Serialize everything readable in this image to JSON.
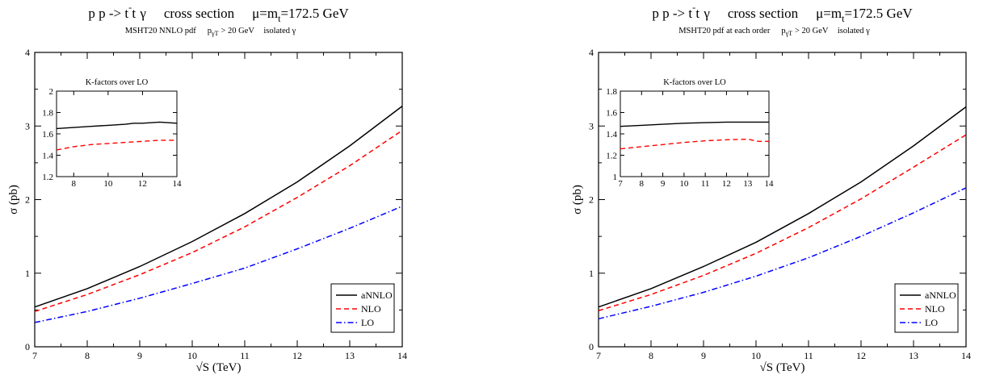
{
  "chart_data": [
    {
      "type": "line",
      "title": "p p -> t t̄ γ    cross section    μ=m_t=172.5 GeV",
      "title_parts": {
        "process": "p p -> t t",
        "bar": "-",
        "gamma": "γ",
        "cross": "cross section",
        "mu": "μ=m",
        "sub_t": "t",
        "value": "=172.5 GeV"
      },
      "subtitle": "MSHT20 NNLO pdf    p_γT > 20 GeV    isolated γ",
      "subtitle_parts": {
        "pdf": "MSHT20 NNLO pdf",
        "pt": "p",
        "pt_sub": "γT",
        "cut": "> 20 GeV",
        "iso": "isolated γ"
      },
      "xlabel": "√S (TeV)",
      "ylabel": "σ  (pb)",
      "xlim": [
        7,
        14
      ],
      "ylim": [
        0,
        4
      ],
      "xticks": [
        7,
        8,
        9,
        10,
        11,
        12,
        13,
        14
      ],
      "yticks": [
        0,
        1,
        2,
        3,
        4
      ],
      "legend_position": "bottom-right",
      "series": [
        {
          "name": "aNNLO",
          "color": "#000000",
          "dash": "solid",
          "x": [
            7,
            8,
            9,
            10,
            11,
            12,
            13,
            14
          ],
          "y": [
            0.54,
            0.79,
            1.09,
            1.43,
            1.81,
            2.24,
            2.73,
            3.27
          ]
        },
        {
          "name": "NLO",
          "color": "#ff0000",
          "dash": "dashed",
          "x": [
            7,
            8,
            9,
            10,
            11,
            12,
            13,
            14
          ],
          "y": [
            0.48,
            0.71,
            0.98,
            1.28,
            1.63,
            2.03,
            2.46,
            2.94
          ]
        },
        {
          "name": "LO",
          "color": "#0000ff",
          "dash": "dashdot",
          "x": [
            7,
            8,
            9,
            10,
            11,
            12,
            13,
            14
          ],
          "y": [
            0.33,
            0.48,
            0.66,
            0.86,
            1.07,
            1.33,
            1.61,
            1.91
          ]
        }
      ],
      "inset": {
        "title": "K-factors over LO",
        "xlim": [
          7,
          14
        ],
        "ylim": [
          1.2,
          2.0
        ],
        "xticks": [
          8,
          10,
          12,
          14
        ],
        "yticks": [
          1.2,
          1.4,
          1.6,
          1.8,
          2.0
        ],
        "series": [
          {
            "name": "aNNLO",
            "color": "#000000",
            "dash": "solid",
            "x": [
              7,
              8,
              9,
              10,
              11,
              11.5,
              12,
              13,
              14
            ],
            "y": [
              1.65,
              1.66,
              1.67,
              1.68,
              1.69,
              1.7,
              1.7,
              1.71,
              1.7
            ]
          },
          {
            "name": "NLO",
            "color": "#ff0000",
            "dash": "dashed",
            "x": [
              7,
              8,
              9,
              10,
              11,
              12,
              13,
              14
            ],
            "y": [
              1.45,
              1.48,
              1.5,
              1.51,
              1.52,
              1.53,
              1.54,
              1.54
            ]
          }
        ]
      }
    },
    {
      "type": "line",
      "title": "p p -> t t̄ γ    cross section    μ=m_t=172.5 GeV",
      "title_parts": {
        "process": "p p -> t t",
        "bar": "-",
        "gamma": "γ",
        "cross": "cross section",
        "mu": "μ=m",
        "sub_t": "t",
        "value": "=172.5 GeV"
      },
      "subtitle": "MSHT20 pdf at each order    p_γT > 20 GeV    isolated γ",
      "subtitle_parts": {
        "pdf": "MSHT20 pdf at each order",
        "pt": "p",
        "pt_sub": "γT",
        "cut": "> 20 GeV",
        "iso": "isolated γ"
      },
      "xlabel": "√S (TeV)",
      "ylabel": "σ  (pb)",
      "xlim": [
        7,
        14
      ],
      "ylim": [
        0,
        4
      ],
      "xticks": [
        7,
        8,
        9,
        10,
        11,
        12,
        13,
        14
      ],
      "yticks": [
        0,
        1,
        2,
        3,
        4
      ],
      "legend_position": "bottom-right",
      "series": [
        {
          "name": "aNNLO",
          "color": "#000000",
          "dash": "solid",
          "x": [
            7,
            8,
            9,
            10,
            11,
            12,
            13,
            14
          ],
          "y": [
            0.54,
            0.79,
            1.09,
            1.42,
            1.81,
            2.24,
            2.73,
            3.26
          ]
        },
        {
          "name": "NLO",
          "color": "#ff0000",
          "dash": "dashed",
          "x": [
            7,
            8,
            9,
            10,
            11,
            12,
            13,
            14
          ],
          "y": [
            0.49,
            0.71,
            0.97,
            1.27,
            1.62,
            2.01,
            2.44,
            2.88
          ]
        },
        {
          "name": "LO",
          "color": "#0000ff",
          "dash": "dashdot",
          "x": [
            7,
            8,
            9,
            10,
            11,
            12,
            13,
            14
          ],
          "y": [
            0.38,
            0.55,
            0.74,
            0.96,
            1.21,
            1.5,
            1.82,
            2.16
          ]
        }
      ],
      "inset": {
        "title": "K-factors over LO",
        "xlim": [
          7,
          14
        ],
        "ylim": [
          1.0,
          1.8
        ],
        "xticks": [
          7,
          8,
          9,
          10,
          11,
          12,
          13,
          14
        ],
        "yticks": [
          1.0,
          1.2,
          1.4,
          1.6,
          1.8
        ],
        "series": [
          {
            "name": "aNNLO",
            "color": "#000000",
            "dash": "solid",
            "x": [
              7,
              8,
              9,
              10,
              11,
              12,
              13,
              14
            ],
            "y": [
              1.47,
              1.48,
              1.49,
              1.5,
              1.505,
              1.51,
              1.51,
              1.51
            ]
          },
          {
            "name": "NLO",
            "color": "#ff0000",
            "dash": "dashed",
            "x": [
              7,
              8,
              9,
              10,
              11,
              12,
              13,
              13.5,
              14
            ],
            "y": [
              1.26,
              1.28,
              1.3,
              1.32,
              1.335,
              1.345,
              1.35,
              1.33,
              1.33
            ]
          }
        ]
      }
    }
  ]
}
